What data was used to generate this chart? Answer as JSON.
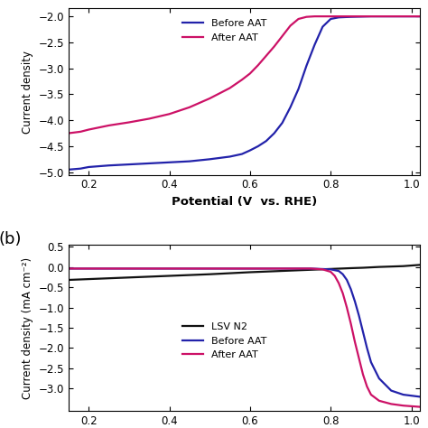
{
  "panel_a": {
    "ylabel": "Current density",
    "xlabel": "Potential (V  vs. RHE)",
    "xlim": [
      0.15,
      1.02
    ],
    "ylim": [
      -5.05,
      -1.85
    ],
    "yticks": [
      -5.0,
      -4.5,
      -4.0,
      -3.5,
      -3.0,
      -2.5,
      -2.0
    ],
    "xticks": [
      0.2,
      0.4,
      0.6,
      0.8,
      1.0
    ],
    "before_color": "#2222aa",
    "after_color": "#cc1166",
    "legend_before": "Before AAT",
    "legend_after": "After AAT",
    "before_x": [
      0.15,
      0.18,
      0.2,
      0.25,
      0.3,
      0.35,
      0.4,
      0.45,
      0.5,
      0.55,
      0.58,
      0.6,
      0.62,
      0.64,
      0.66,
      0.68,
      0.7,
      0.72,
      0.74,
      0.76,
      0.78,
      0.8,
      0.82,
      0.85,
      0.9,
      1.02
    ],
    "before_y": [
      -4.95,
      -4.93,
      -4.9,
      -4.87,
      -4.85,
      -4.83,
      -4.81,
      -4.79,
      -4.75,
      -4.7,
      -4.65,
      -4.58,
      -4.5,
      -4.4,
      -4.25,
      -4.05,
      -3.75,
      -3.4,
      -2.95,
      -2.55,
      -2.2,
      -2.05,
      -2.02,
      -2.01,
      -2.0,
      -2.0
    ],
    "after_x": [
      0.15,
      0.18,
      0.2,
      0.25,
      0.3,
      0.35,
      0.4,
      0.45,
      0.5,
      0.55,
      0.58,
      0.6,
      0.62,
      0.64,
      0.66,
      0.68,
      0.7,
      0.72,
      0.74,
      0.76,
      0.78,
      0.8,
      0.85,
      1.02
    ],
    "after_y": [
      -4.25,
      -4.22,
      -4.18,
      -4.1,
      -4.04,
      -3.97,
      -3.88,
      -3.75,
      -3.58,
      -3.38,
      -3.22,
      -3.1,
      -2.94,
      -2.76,
      -2.58,
      -2.38,
      -2.18,
      -2.05,
      -2.01,
      -2.0,
      -2.0,
      -2.0,
      -2.0,
      -2.0
    ]
  },
  "panel_b": {
    "ylabel": "Current density (mA cm⁻²)",
    "xlabel": "",
    "xlim": [
      0.15,
      1.02
    ],
    "ylim": [
      -3.55,
      0.55
    ],
    "yticks": [
      -3.0,
      -2.5,
      -2.0,
      -1.5,
      -1.0,
      -0.5,
      0.0,
      0.5
    ],
    "xticks": [
      0.2,
      0.4,
      0.6,
      0.8,
      1.0
    ],
    "n2_color": "#111111",
    "before_color": "#2222aa",
    "after_color": "#cc1166",
    "legend_n2": "LSV N2",
    "legend_before": "Before AAT",
    "legend_after": "After AAT",
    "n2_x": [
      0.15,
      0.2,
      0.3,
      0.4,
      0.5,
      0.6,
      0.7,
      0.8,
      0.85,
      0.88,
      0.9,
      0.92,
      0.95,
      0.98,
      1.02
    ],
    "n2_y": [
      -0.32,
      -0.3,
      -0.26,
      -0.22,
      -0.18,
      -0.13,
      -0.09,
      -0.05,
      -0.03,
      -0.02,
      -0.01,
      0.0,
      0.01,
      0.02,
      0.05
    ],
    "before_x": [
      0.15,
      0.2,
      0.3,
      0.4,
      0.5,
      0.6,
      0.7,
      0.75,
      0.8,
      0.82,
      0.83,
      0.84,
      0.85,
      0.86,
      0.87,
      0.88,
      0.89,
      0.9,
      0.92,
      0.95,
      0.98,
      1.02
    ],
    "before_y": [
      -0.04,
      -0.04,
      -0.04,
      -0.04,
      -0.04,
      -0.04,
      -0.04,
      -0.04,
      -0.06,
      -0.1,
      -0.18,
      -0.32,
      -0.55,
      -0.85,
      -1.2,
      -1.6,
      -2.0,
      -2.35,
      -2.75,
      -3.05,
      -3.15,
      -3.2
    ],
    "after_x": [
      0.15,
      0.2,
      0.3,
      0.4,
      0.5,
      0.6,
      0.7,
      0.75,
      0.78,
      0.8,
      0.81,
      0.82,
      0.83,
      0.84,
      0.85,
      0.86,
      0.87,
      0.88,
      0.89,
      0.9,
      0.92,
      0.95,
      0.98,
      1.02
    ],
    "after_y": [
      -0.04,
      -0.04,
      -0.04,
      -0.04,
      -0.04,
      -0.04,
      -0.04,
      -0.04,
      -0.06,
      -0.12,
      -0.22,
      -0.4,
      -0.65,
      -1.0,
      -1.4,
      -1.85,
      -2.25,
      -2.65,
      -2.95,
      -3.15,
      -3.3,
      -3.38,
      -3.42,
      -3.45
    ]
  },
  "label_b": "(b)",
  "background_color": "#ffffff"
}
